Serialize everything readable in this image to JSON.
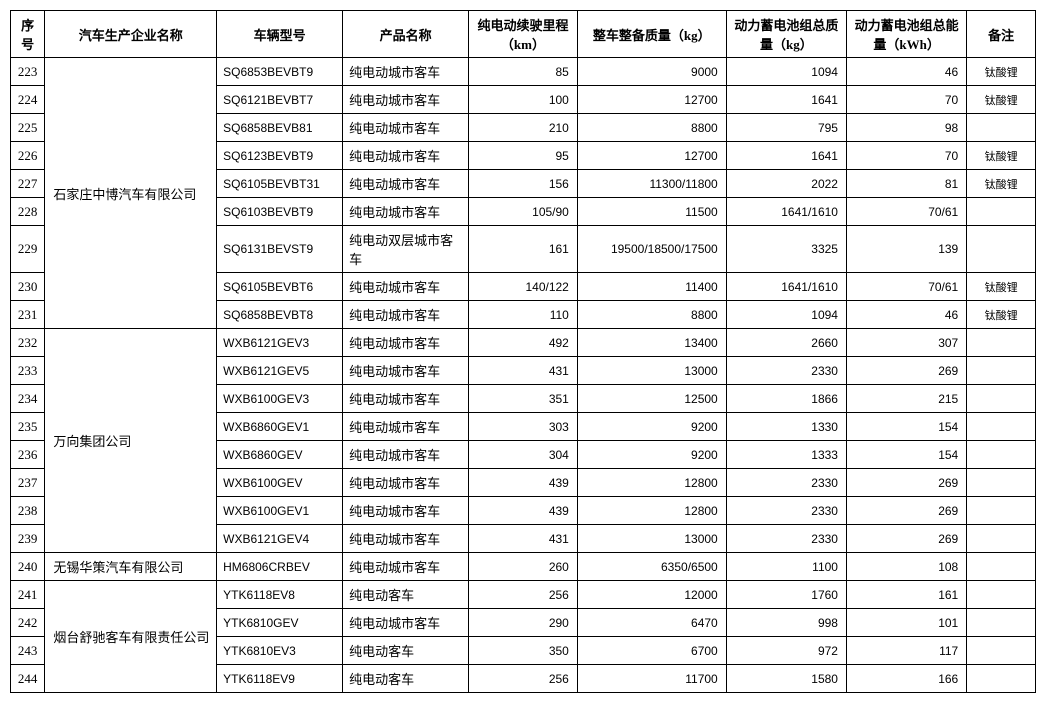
{
  "columns": [
    {
      "key": "seq",
      "label": "序号",
      "class": "col-seq"
    },
    {
      "key": "company",
      "label": "汽车生产企业名称",
      "class": "col-company"
    },
    {
      "key": "model",
      "label": "车辆型号",
      "class": "col-model"
    },
    {
      "key": "product",
      "label": "产品名称",
      "class": "col-product"
    },
    {
      "key": "range",
      "label": "纯电动续驶里程（km）",
      "class": "col-range"
    },
    {
      "key": "mass",
      "label": "整车整备质量（kg）",
      "class": "col-mass"
    },
    {
      "key": "batmass",
      "label": "动力蓄电池组总质量（kg）",
      "class": "col-batmass"
    },
    {
      "key": "energy",
      "label": "动力蓄电池组总能量（kWh）",
      "class": "col-energy"
    },
    {
      "key": "remark",
      "label": "备注",
      "class": "col-remark"
    }
  ],
  "groups": [
    {
      "company": "石家庄中博汽车有限公司",
      "rows": [
        {
          "seq": "223",
          "model": "SQ6853BEVBT9",
          "product": "纯电动城市客车",
          "range": "85",
          "mass": "9000",
          "batmass": "1094",
          "energy": "46",
          "remark": "钛酸锂"
        },
        {
          "seq": "224",
          "model": "SQ6121BEVBT7",
          "product": "纯电动城市客车",
          "range": "100",
          "mass": "12700",
          "batmass": "1641",
          "energy": "70",
          "remark": "钛酸锂"
        },
        {
          "seq": "225",
          "model": "SQ6858BEVB81",
          "product": "纯电动城市客车",
          "range": "210",
          "mass": "8800",
          "batmass": "795",
          "energy": "98",
          "remark": ""
        },
        {
          "seq": "226",
          "model": "SQ6123BEVBT9",
          "product": "纯电动城市客车",
          "range": "95",
          "mass": "12700",
          "batmass": "1641",
          "energy": "70",
          "remark": "钛酸锂"
        },
        {
          "seq": "227",
          "model": "SQ6105BEVBT31",
          "product": "纯电动城市客车",
          "range": "156",
          "mass": "11300/11800",
          "batmass": "2022",
          "energy": "81",
          "remark": "钛酸锂"
        },
        {
          "seq": "228",
          "model": "SQ6103BEVBT9",
          "product": "纯电动城市客车",
          "range": "105/90",
          "mass": "11500",
          "batmass": "1641/1610",
          "energy": "70/61",
          "remark": ""
        },
        {
          "seq": "229",
          "model": "SQ6131BEVST9",
          "product": "纯电动双层城市客车",
          "range": "161",
          "mass": "19500/18500/17500",
          "batmass": "3325",
          "energy": "139",
          "remark": ""
        },
        {
          "seq": "230",
          "model": "SQ6105BEVBT6",
          "product": "纯电动城市客车",
          "range": "140/122",
          "mass": "11400",
          "batmass": "1641/1610",
          "energy": "70/61",
          "remark": "钛酸锂"
        },
        {
          "seq": "231",
          "model": "SQ6858BEVBT8",
          "product": "纯电动城市客车",
          "range": "110",
          "mass": "8800",
          "batmass": "1094",
          "energy": "46",
          "remark": "钛酸锂"
        }
      ]
    },
    {
      "company": "万向集团公司",
      "rows": [
        {
          "seq": "232",
          "model": "WXB6121GEV3",
          "product": "纯电动城市客车",
          "range": "492",
          "mass": "13400",
          "batmass": "2660",
          "energy": "307",
          "remark": ""
        },
        {
          "seq": "233",
          "model": "WXB6121GEV5",
          "product": "纯电动城市客车",
          "range": "431",
          "mass": "13000",
          "batmass": "2330",
          "energy": "269",
          "remark": ""
        },
        {
          "seq": "234",
          "model": "WXB6100GEV3",
          "product": "纯电动城市客车",
          "range": "351",
          "mass": "12500",
          "batmass": "1866",
          "energy": "215",
          "remark": ""
        },
        {
          "seq": "235",
          "model": "WXB6860GEV1",
          "product": "纯电动城市客车",
          "range": "303",
          "mass": "9200",
          "batmass": "1330",
          "energy": "154",
          "remark": ""
        },
        {
          "seq": "236",
          "model": "WXB6860GEV",
          "product": "纯电动城市客车",
          "range": "304",
          "mass": "9200",
          "batmass": "1333",
          "energy": "154",
          "remark": ""
        },
        {
          "seq": "237",
          "model": "WXB6100GEV",
          "product": "纯电动城市客车",
          "range": "439",
          "mass": "12800",
          "batmass": "2330",
          "energy": "269",
          "remark": ""
        },
        {
          "seq": "238",
          "model": "WXB6100GEV1",
          "product": "纯电动城市客车",
          "range": "439",
          "mass": "12800",
          "batmass": "2330",
          "energy": "269",
          "remark": ""
        },
        {
          "seq": "239",
          "model": "WXB6121GEV4",
          "product": "纯电动城市客车",
          "range": "431",
          "mass": "13000",
          "batmass": "2330",
          "energy": "269",
          "remark": ""
        }
      ]
    },
    {
      "company": "无锡华策汽车有限公司",
      "rows": [
        {
          "seq": "240",
          "model": "HM6806CRBEV",
          "product": "纯电动城市客车",
          "range": "260",
          "mass": "6350/6500",
          "batmass": "1100",
          "energy": "108",
          "remark": ""
        }
      ]
    },
    {
      "company": "烟台舒驰客车有限责任公司",
      "rows": [
        {
          "seq": "241",
          "model": "YTK6118EV8",
          "product": "纯电动客车",
          "range": "256",
          "mass": "12000",
          "batmass": "1760",
          "energy": "161",
          "remark": ""
        },
        {
          "seq": "242",
          "model": "YTK6810GEV",
          "product": "纯电动城市客车",
          "range": "290",
          "mass": "6470",
          "batmass": "998",
          "energy": "101",
          "remark": ""
        },
        {
          "seq": "243",
          "model": "YTK6810EV3",
          "product": "纯电动客车",
          "range": "350",
          "mass": "6700",
          "batmass": "972",
          "energy": "117",
          "remark": ""
        },
        {
          "seq": "244",
          "model": "YTK6118EV9",
          "product": "纯电动客车",
          "range": "256",
          "mass": "11700",
          "batmass": "1580",
          "energy": "166",
          "remark": ""
        }
      ]
    }
  ],
  "styling": {
    "border_color": "#000000",
    "header_bg": "#ffffff",
    "body_bg": "#ffffff",
    "text_color": "#000000",
    "font_family_cn": "SimSun, 宋体, serif",
    "font_family_latin": "Arial, sans-serif",
    "header_fontsize_pt": 10,
    "body_fontsize_pt": 10,
    "remark_fontsize_pt": 8,
    "align": {
      "seq": "center",
      "company": "left",
      "model": "left",
      "product": "left",
      "range": "right",
      "mass": "right",
      "batmass": "right",
      "energy": "right",
      "remark": "center"
    }
  }
}
